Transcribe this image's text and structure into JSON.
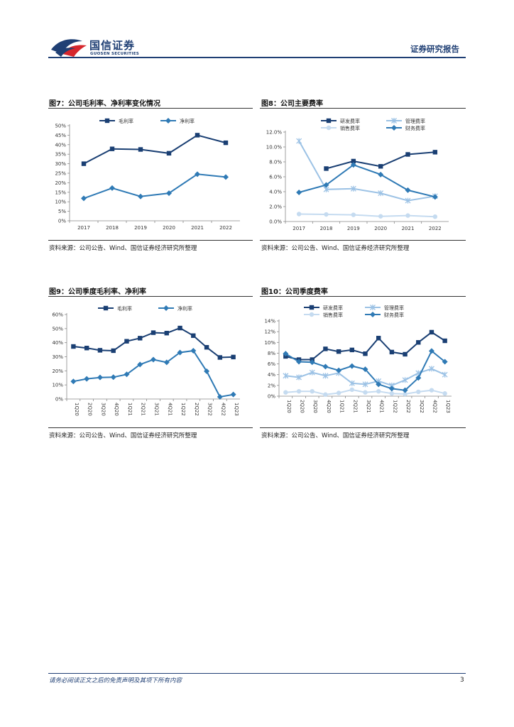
{
  "header": {
    "logo_cn": "国信证券",
    "logo_en": "GUOSEN SECURITIES",
    "report_type": "证券研究报告"
  },
  "colors": {
    "dark_navy": "#1a3f73",
    "mid_blue": "#2f7ab5",
    "light_blue": "#9cc2e5",
    "pale_blue": "#c5dbf0"
  },
  "figures": [
    {
      "title": "图7：公司毛利率、净利率变化情况",
      "source": "资料来源：公司公告、Wind、国信证券经济研究所整理",
      "chart_data": {
        "type": "line",
        "categories": [
          "2017",
          "2018",
          "2019",
          "2020",
          "2021",
          "2022"
        ],
        "ylim": [
          0,
          50
        ],
        "yticks": [
          "0%",
          "5%",
          "10%",
          "15%",
          "20%",
          "25%",
          "30%",
          "35%",
          "40%",
          "45%",
          "50%"
        ],
        "series": [
          {
            "name": "毛利率",
            "color": "#1a3f73",
            "marker": "square",
            "values": [
              30,
              37.8,
              37.5,
              35.5,
              45,
              41
            ]
          },
          {
            "name": "净利率",
            "color": "#2f7ab5",
            "marker": "diamond",
            "values": [
              11.8,
              17.2,
              12.8,
              14.5,
              24.5,
              23
            ]
          }
        ]
      }
    },
    {
      "title": "图8：公司主要费率",
      "source": "资料来源：公司公告、Wind、国信证券经济研究所整理",
      "chart_data": {
        "type": "line",
        "categories": [
          "2017",
          "2018",
          "2019",
          "2020",
          "2021",
          "2022"
        ],
        "ylim": [
          0,
          12
        ],
        "yticks": [
          "0.0%",
          "2.0%",
          "4.0%",
          "6.0%",
          "8.0%",
          "10.0%",
          "12.0%"
        ],
        "series": [
          {
            "name": "研发费率",
            "color": "#1a3f73",
            "marker": "square",
            "values": [
              null,
              7.1,
              8.1,
              7.4,
              9.0,
              9.3
            ]
          },
          {
            "name": "管理费率",
            "color": "#9cc2e5",
            "marker": "x",
            "values": [
              10.8,
              4.3,
              4.4,
              3.8,
              2.8,
              3.4
            ]
          },
          {
            "name": "销售费率",
            "color": "#c5dbf0",
            "marker": "circle",
            "values": [
              1.0,
              0.95,
              0.9,
              0.7,
              0.8,
              0.65
            ]
          },
          {
            "name": "财务费率",
            "color": "#2f7ab5",
            "marker": "diamond",
            "values": [
              3.9,
              4.9,
              7.6,
              6.3,
              4.2,
              3.3
            ]
          }
        ]
      }
    },
    {
      "title": "图9：公司季度毛利率、净利率",
      "source": "资料来源：公司公告、Wind、国信证券经济研究所整理",
      "chart_data": {
        "type": "line",
        "categories": [
          "1Q20",
          "2Q20",
          "3Q20",
          "4Q20",
          "1Q21",
          "2Q21",
          "3Q21",
          "4Q21",
          "1Q22",
          "2Q22",
          "3Q22",
          "4Q22",
          "1Q23"
        ],
        "ylim": [
          0,
          60
        ],
        "yticks": [
          "0%",
          "10%",
          "20%",
          "30%",
          "40%",
          "50%",
          "60%"
        ],
        "series": [
          {
            "name": "毛利率",
            "color": "#1a3f73",
            "marker": "square",
            "values": [
              37.3,
              36.2,
              34.6,
              34.3,
              41,
              43.2,
              47.1,
              46.8,
              50.4,
              45,
              36.7,
              29.5,
              29.8
            ]
          },
          {
            "name": "净利率",
            "color": "#2f7ab5",
            "marker": "diamond",
            "values": [
              12.5,
              14.3,
              15.3,
              15.5,
              17.5,
              24.5,
              28,
              26,
              33,
              34.3,
              19.7,
              1.5,
              3.2
            ]
          }
        ]
      }
    },
    {
      "title": "图10：公司季度费率",
      "source": "资料来源：公司公告、Wind、国信证券经济研究所整理",
      "chart_data": {
        "type": "line",
        "categories": [
          "1Q20",
          "2Q20",
          "3Q20",
          "4Q20",
          "1Q21",
          "2Q21",
          "3Q21",
          "4Q21",
          "1Q22",
          "2Q22",
          "3Q22",
          "4Q22",
          "1Q23"
        ],
        "ylim": [
          0,
          14
        ],
        "yticks": [
          "0%",
          "2%",
          "4%",
          "6%",
          "8%",
          "10%",
          "12%",
          "14%"
        ],
        "series": [
          {
            "name": "研发费率",
            "color": "#1a3f73",
            "marker": "square",
            "values": [
              7.4,
              6.8,
              6.8,
              8.8,
              8.3,
              8.6,
              7.9,
              10.8,
              8.2,
              7.8,
              10,
              11.9,
              10.3
            ]
          },
          {
            "name": "管理费率",
            "color": "#9cc2e5",
            "marker": "x",
            "values": [
              3.8,
              3.5,
              4.4,
              3.8,
              4.3,
              2.4,
              2.2,
              2.8,
              2.0,
              3.0,
              4.3,
              5.1,
              4.0
            ]
          },
          {
            "name": "销售费率",
            "color": "#c5dbf0",
            "marker": "circle",
            "values": [
              0.7,
              0.9,
              0.9,
              0.3,
              0.6,
              1.2,
              0.7,
              0.9,
              0.5,
              0.4,
              0.8,
              1.1,
              0.5
            ]
          },
          {
            "name": "财务费率",
            "color": "#2f7ab5",
            "marker": "diamond",
            "values": [
              7.9,
              6.4,
              6.3,
              5.5,
              4.8,
              5.6,
              5.0,
              2.2,
              1.4,
              1.1,
              3.4,
              8.4,
              6.4
            ]
          }
        ]
      }
    }
  ],
  "footer": {
    "disclaimer": "请务必阅读正文之后的免责声明及其项下所有内容",
    "page_number": "3"
  }
}
